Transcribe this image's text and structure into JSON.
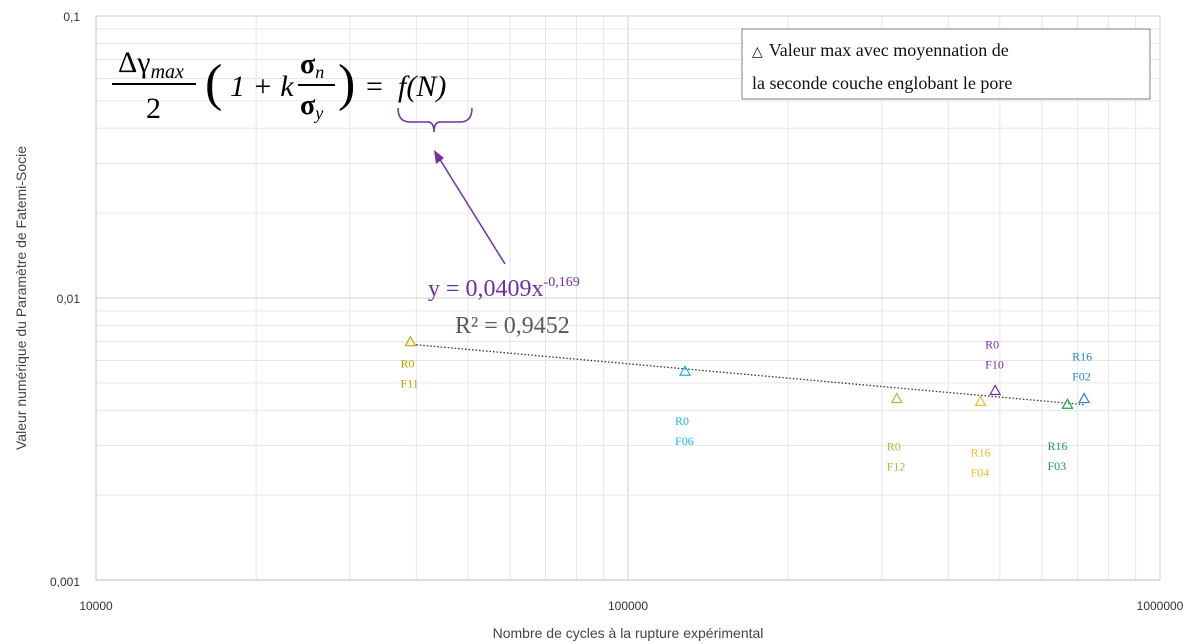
{
  "chart_data": {
    "type": "scatter",
    "title": "",
    "xlabel": "Nombre de cycles à la rupture expérimental",
    "ylabel": "Valeur numérique du Paramètre de Fatemi-Socie",
    "xscale": "log",
    "yscale": "log",
    "xlim": [
      10000,
      1000000
    ],
    "ylim": [
      0.001,
      0.1
    ],
    "x_ticks": [
      "10000",
      "100000",
      "1000000"
    ],
    "y_ticks": [
      "0,001",
      "0,01",
      "0,1"
    ],
    "grid": true,
    "legend": {
      "position": "top-right",
      "marker": "△",
      "lines": [
        "Valeur max avec moyennation de",
        "la seconde couche englobant le pore"
      ]
    },
    "points": [
      {
        "x": 39000,
        "y": 0.007,
        "label_line1": "R0",
        "label_line2": "F11",
        "color": "#c8a000"
      },
      {
        "x": 128000,
        "y": 0.0055,
        "label_line1": "R0",
        "label_line2": "F06",
        "color": "#1eb4e6"
      },
      {
        "x": 320000,
        "y": 0.0044,
        "label_line1": "R0",
        "label_line2": "F12",
        "color": "#8cc83c"
      },
      {
        "x": 460000,
        "y": 0.0043,
        "label_line1": "R16",
        "label_line2": "F04",
        "color": "#f0be28"
      },
      {
        "x": 490000,
        "y": 0.0047,
        "label_line1": "R0",
        "label_line2": "F10",
        "color": "#7a2fa0"
      },
      {
        "x": 670000,
        "y": 0.0042,
        "label_line1": "R16",
        "label_line2": "F03",
        "color": "#19a046"
      },
      {
        "x": 720000,
        "y": 0.0044,
        "label_line1": "R16",
        "label_line2": "F02",
        "color": "#2882c8"
      }
    ],
    "trendline": {
      "type": "power",
      "coefficient": 0.0409,
      "exponent": -0.169,
      "x_range": [
        40000,
        720000
      ],
      "equation_prefix": "y = 0,0409x",
      "equation_exponent": "-0,169",
      "r_squared": "R² = 0,9452",
      "equation_color": "#7030a0",
      "r2_color": "#595959"
    }
  },
  "formula": {
    "numerator": "Δγ",
    "numerator_sub": "max",
    "denominator": "2",
    "open_paren": "(",
    "one_plus_k": "1 + k",
    "sigma_n": "σ",
    "sigma_n_sub": "n",
    "sigma_y": "σ",
    "sigma_y_sub": "y",
    "close_paren": ")",
    "equals": "=",
    "fN": "f(N)"
  },
  "colors": {
    "annotation_arrow": "#7030a0",
    "brace": "#7030a0",
    "gridline": "#e6e6e6",
    "major_gridline": "#d0d0d0",
    "axis": "#bfbfbf"
  }
}
